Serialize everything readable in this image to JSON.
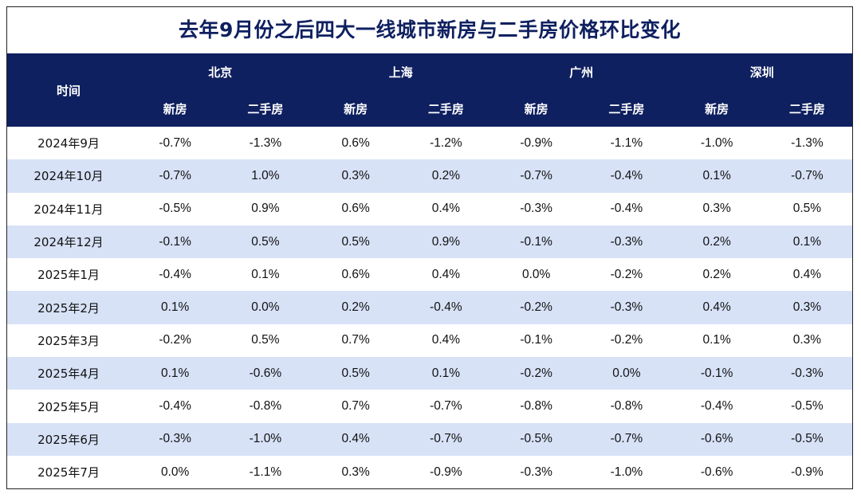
{
  "chart_data": {
    "type": "table",
    "title": "去年9月份之后四大一线城市新房与二手房价格环比变化",
    "time_header": "时间",
    "cities": [
      {
        "name": "北京",
        "sub": [
          "新房",
          "二手房"
        ]
      },
      {
        "name": "上海",
        "sub": [
          "新房",
          "二手房"
        ]
      },
      {
        "name": "广州",
        "sub": [
          "新房",
          "二手房"
        ]
      },
      {
        "name": "深圳",
        "sub": [
          "新房",
          "二手房"
        ]
      }
    ],
    "rows": [
      {
        "time": "2024年9月",
        "values": [
          "-0.7%",
          "-1.3%",
          "0.6%",
          "-1.2%",
          "-0.9%",
          "-1.1%",
          "-1.0%",
          "-1.3%"
        ]
      },
      {
        "time": "2024年10月",
        "values": [
          "-0.7%",
          "1.0%",
          "0.3%",
          "0.2%",
          "-0.7%",
          "-0.4%",
          "0.1%",
          "-0.7%"
        ]
      },
      {
        "time": "2024年11月",
        "values": [
          "-0.5%",
          "0.9%",
          "0.6%",
          "0.4%",
          "-0.3%",
          "-0.4%",
          "0.3%",
          "0.5%"
        ]
      },
      {
        "time": "2024年12月",
        "values": [
          "-0.1%",
          "0.5%",
          "0.5%",
          "0.9%",
          "-0.1%",
          "-0.3%",
          "0.2%",
          "0.1%"
        ]
      },
      {
        "time": "2025年1月",
        "values": [
          "-0.4%",
          "0.1%",
          "0.6%",
          "0.4%",
          "0.0%",
          "-0.2%",
          "0.2%",
          "0.4%"
        ]
      },
      {
        "time": "2025年2月",
        "values": [
          "0.1%",
          "0.0%",
          "0.2%",
          "-0.4%",
          "-0.2%",
          "-0.3%",
          "0.4%",
          "0.3%"
        ]
      },
      {
        "time": "2025年3月",
        "values": [
          "-0.2%",
          "0.5%",
          "0.7%",
          "0.4%",
          "-0.1%",
          "-0.2%",
          "0.1%",
          "0.3%"
        ]
      },
      {
        "time": "2025年4月",
        "values": [
          "0.1%",
          "-0.6%",
          "0.5%",
          "0.1%",
          "-0.2%",
          "0.0%",
          "-0.1%",
          "-0.3%"
        ]
      },
      {
        "time": "2025年5月",
        "values": [
          "-0.4%",
          "-0.8%",
          "0.7%",
          "-0.7%",
          "-0.8%",
          "-0.8%",
          "-0.4%",
          "-0.5%"
        ]
      },
      {
        "time": "2025年6月",
        "values": [
          "-0.3%",
          "-1.0%",
          "0.4%",
          "-0.7%",
          "-0.5%",
          "-0.7%",
          "-0.6%",
          "-0.5%"
        ]
      },
      {
        "time": "2025年7月",
        "values": [
          "0.0%",
          "-1.1%",
          "0.3%",
          "-0.9%",
          "-0.3%",
          "-1.0%",
          "-0.6%",
          "-0.9%"
        ]
      }
    ],
    "colors": {
      "header_bg": "#0f2060",
      "header_text": "#ffffff",
      "title": "#0f2060",
      "stripe": "#d7e2f7"
    }
  }
}
